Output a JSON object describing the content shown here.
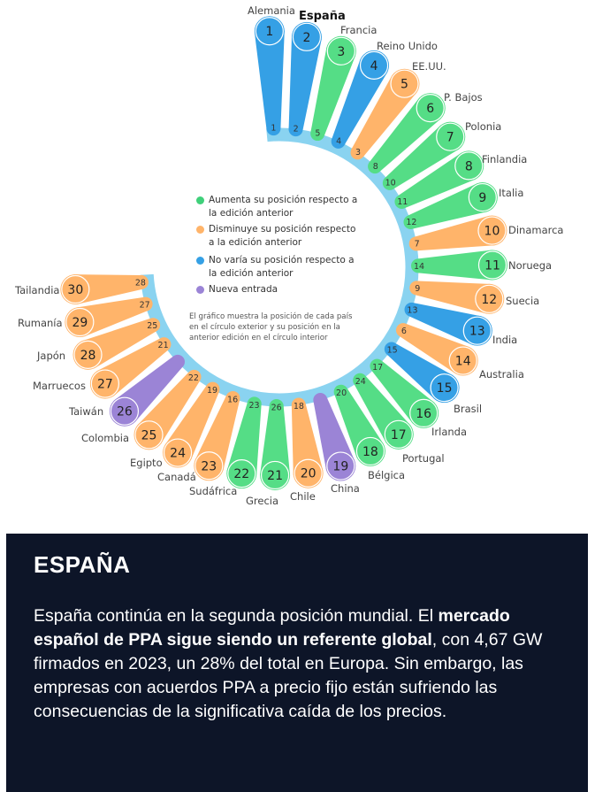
{
  "chart_data": {
    "type": "radial-ranking",
    "title": "España",
    "status_colors": {
      "up": "#55dd86",
      "down": "#ffb46a",
      "same": "#35a0e5",
      "new": "#9b84d6"
    },
    "ring_color": "#8ad3f0",
    "items": [
      {
        "rank": 1,
        "country": "Alemania",
        "prev": "1",
        "status": "same"
      },
      {
        "rank": 2,
        "country": "España",
        "prev": "2",
        "status": "same",
        "highlight": true
      },
      {
        "rank": 3,
        "country": "Francia",
        "prev": "5",
        "status": "up"
      },
      {
        "rank": 4,
        "country": "Reino Unido",
        "prev": "4",
        "status": "same"
      },
      {
        "rank": 5,
        "country": "EE.UU.",
        "prev": "3",
        "status": "down"
      },
      {
        "rank": 6,
        "country": "P. Bajos",
        "prev": "8",
        "status": "up"
      },
      {
        "rank": 7,
        "country": "Polonia",
        "prev": "10",
        "status": "up"
      },
      {
        "rank": 8,
        "country": "Finlandia",
        "prev": "11",
        "status": "up"
      },
      {
        "rank": 9,
        "country": "Italia",
        "prev": "12",
        "status": "up"
      },
      {
        "rank": 10,
        "country": "Dinamarca",
        "prev": "7",
        "status": "down"
      },
      {
        "rank": 11,
        "country": "Noruega",
        "prev": "14",
        "status": "up"
      },
      {
        "rank": 12,
        "country": "Suecia",
        "prev": "9",
        "status": "down"
      },
      {
        "rank": 13,
        "country": "India",
        "prev": "13",
        "status": "same"
      },
      {
        "rank": 14,
        "country": "Australia",
        "prev": "6",
        "status": "down"
      },
      {
        "rank": 15,
        "country": "Brasil",
        "prev": "15",
        "status": "same"
      },
      {
        "rank": 16,
        "country": "Irlanda",
        "prev": "17",
        "status": "up"
      },
      {
        "rank": 17,
        "country": "Portugal",
        "prev": "24",
        "status": "up"
      },
      {
        "rank": 18,
        "country": "Bélgica",
        "prev": "20",
        "status": "up"
      },
      {
        "rank": 19,
        "country": "China",
        "prev": "",
        "status": "new"
      },
      {
        "rank": 20,
        "country": "Chile",
        "prev": "18",
        "status": "down"
      },
      {
        "rank": 21,
        "country": "Grecia",
        "prev": "26",
        "status": "up"
      },
      {
        "rank": 22,
        "country": "Sudáfrica",
        "prev": "23",
        "status": "up"
      },
      {
        "rank": 23,
        "country": "Canadá",
        "prev": "16",
        "status": "down"
      },
      {
        "rank": 24,
        "country": "Egipto",
        "prev": "19",
        "status": "down"
      },
      {
        "rank": 25,
        "country": "Colombia",
        "prev": "22",
        "status": "down"
      },
      {
        "rank": 26,
        "country": "Taiwán",
        "prev": "",
        "status": "new"
      },
      {
        "rank": 27,
        "country": "Marruecos",
        "prev": "21",
        "status": "down"
      },
      {
        "rank": 28,
        "country": "Japón",
        "prev": "25",
        "status": "down"
      },
      {
        "rank": 29,
        "country": "Rumanía",
        "prev": "27",
        "status": "down"
      },
      {
        "rank": 30,
        "country": "Tailandia",
        "prev": "28",
        "status": "down"
      }
    ],
    "legend": [
      {
        "status": "up",
        "label": "Aumenta su posición respecto a la edición anterior"
      },
      {
        "status": "down",
        "label": "Disminuye su posición respecto a la edición anterior"
      },
      {
        "status": "same",
        "label": "No varía su posición respecto a la edición anterior"
      },
      {
        "status": "new",
        "label": "Nueva entrada"
      }
    ],
    "note": "El gráfico muestra la posición de cada país en el círculo exterior y su posición en la anterior edición en el círculo interior"
  },
  "panel": {
    "title": "ESPAÑA",
    "text_1": "España continúa en la segunda posición mundial. El ",
    "text_bold": "mercado español de PPA sigue siendo un referente global",
    "text_2": ", con 4,67 GW firmados en 2023, un 28% del total en Europa. Sin embargo, las empresas con acuerdos PPA a precio fijo están sufriendo las consecuencias de la significativa caída de los precios."
  }
}
